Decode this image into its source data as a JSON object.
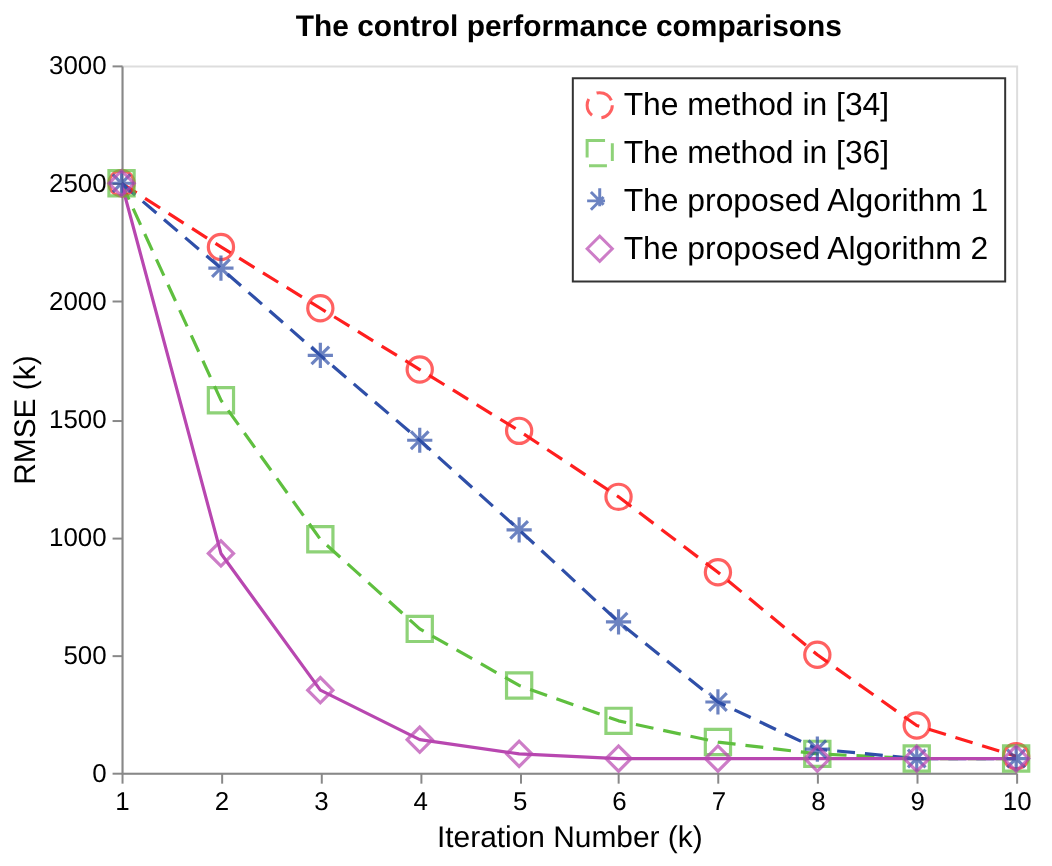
{
  "chart_data": {
    "type": "line",
    "title": "The control performance comparisons",
    "xlabel": "Iteration Number (k)",
    "ylabel": "RMSE (k)",
    "x": [
      1,
      2,
      3,
      4,
      5,
      6,
      7,
      8,
      9,
      10
    ],
    "series": [
      {
        "name": "The method in [34]",
        "color": "#ff1f1f",
        "marker": "circle",
        "line_style": "dashed",
        "values": [
          2500,
          2230,
          1970,
          1710,
          1450,
          1170,
          850,
          500,
          200,
          70
        ]
      },
      {
        "name": "The method in [36]",
        "color": "#5fbf3f",
        "marker": "square",
        "line_style": "dashed",
        "values": [
          2500,
          1580,
          990,
          610,
          370,
          220,
          130,
          80,
          60,
          60
        ]
      },
      {
        "name": "The proposed Algorithm 1",
        "color": "#2f4fa8",
        "marker": "cross",
        "line_style": "dashed",
        "values": [
          2500,
          2140,
          1770,
          1410,
          1030,
          640,
          300,
          100,
          60,
          60
        ]
      },
      {
        "name": "The proposed Algorithm 2",
        "color": "#b847b0",
        "marker": "diamond",
        "line_style": "solid",
        "values": [
          2500,
          930,
          350,
          140,
          80,
          60,
          60,
          60,
          60,
          60
        ]
      }
    ],
    "xlim": [
      1,
      10
    ],
    "xticks": [
      1,
      2,
      3,
      4,
      5,
      6,
      7,
      8,
      9,
      10
    ],
    "ylim": [
      0,
      3000
    ],
    "yticks": [
      0,
      500,
      1000,
      1500,
      2000,
      2500,
      3000
    ],
    "grid": false,
    "legend": "top right"
  }
}
